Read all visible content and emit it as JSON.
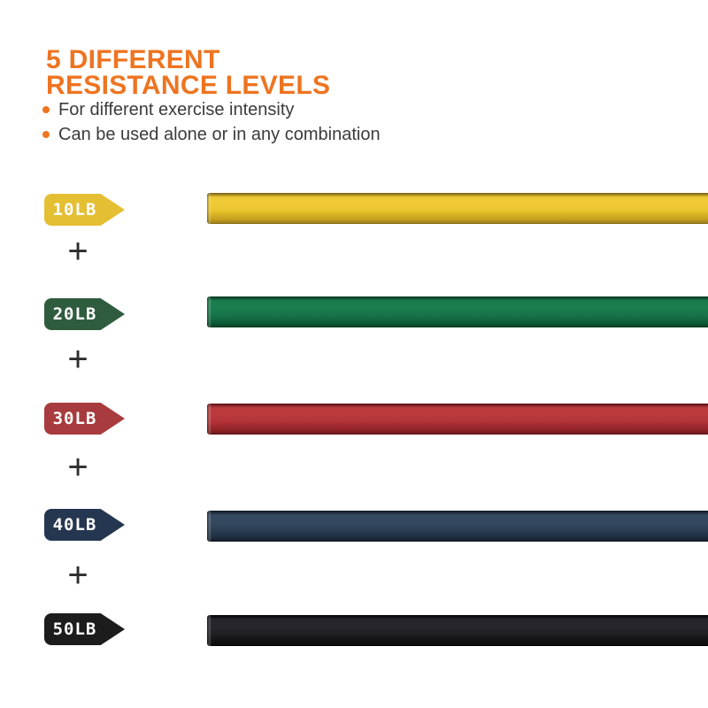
{
  "header": {
    "title_line1": "5 DIFFERENT",
    "title_line2": "RESISTANCE LEVELS",
    "title_color": "#ee7420",
    "bullet_color": "#ed751f",
    "bullets": [
      "For different exercise intensity",
      "Can be used alone or in any combination"
    ]
  },
  "separator": {
    "symbol": "+"
  },
  "rows": [
    {
      "label": "10LB",
      "tag_color": "#e5bf33",
      "band": {
        "edge": "#6e5a10",
        "edge_top": "#a0811a",
        "light": "#efca36",
        "mid": "#eac42c",
        "dark": "#c39d1e"
      }
    },
    {
      "label": "20LB",
      "tag_color": "#2f5c3e",
      "band": {
        "edge": "#06331c",
        "edge_top": "#0b4527",
        "light": "#1a7d4e",
        "mid": "#177549",
        "dark": "#0e5b37"
      }
    },
    {
      "label": "30LB",
      "tag_color": "#a73b3d",
      "band": {
        "edge": "#551012",
        "edge_top": "#6e1a1d",
        "light": "#bb3a3e",
        "mid": "#b23237",
        "dark": "#8e2226"
      }
    },
    {
      "label": "40LB",
      "tag_color": "#253750",
      "band": {
        "edge": "#0d1520",
        "edge_top": "#131d2b",
        "light": "#34495f",
        "mid": "#2d4156",
        "dark": "#1f2e41"
      }
    },
    {
      "label": "50LB",
      "tag_color": "#1c1c1c",
      "band": {
        "edge": "#000000",
        "edge_top": "#0d0d10",
        "light": "#26262c",
        "mid": "#202025",
        "dark": "#101013"
      }
    }
  ]
}
